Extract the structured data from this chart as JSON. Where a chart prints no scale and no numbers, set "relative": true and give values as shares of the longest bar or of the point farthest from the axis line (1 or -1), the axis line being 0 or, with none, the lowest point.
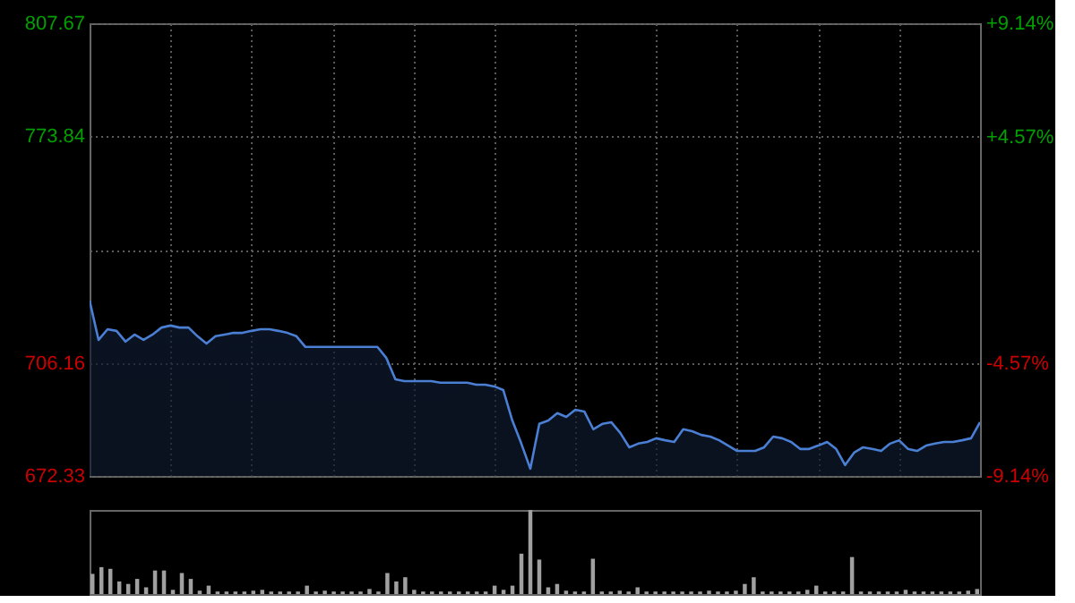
{
  "chart_data": [
    {
      "type": "area",
      "categories": [
        null,
        null,
        null,
        null,
        null,
        null,
        null,
        null,
        null,
        null,
        null,
        null,
        null,
        null,
        null,
        null,
        null,
        null,
        null,
        null,
        null,
        null,
        null,
        null,
        null,
        null,
        null,
        null,
        null,
        null,
        null,
        null,
        null,
        null,
        null,
        null,
        null,
        null,
        null,
        null,
        null,
        null,
        null,
        null,
        null,
        null,
        null,
        null,
        null,
        null,
        null,
        null,
        null,
        null,
        null,
        null,
        null,
        null,
        null,
        null,
        null,
        null,
        null,
        null,
        null,
        null,
        null,
        null,
        null,
        null,
        null,
        null,
        null,
        null,
        null,
        null,
        null,
        null,
        null,
        null,
        null,
        null,
        null,
        null,
        null,
        null,
        null,
        null,
        null,
        null,
        null,
        null,
        null,
        null,
        null,
        null,
        null,
        null,
        null,
        null
      ],
      "values": [
        724.8,
        713.0,
        716.2,
        715.7,
        712.5,
        714.6,
        713.0,
        714.6,
        716.7,
        717.3,
        716.7,
        716.7,
        714.1,
        711.9,
        714.1,
        714.6,
        715.1,
        715.1,
        715.7,
        716.2,
        716.2,
        715.7,
        715.1,
        714.1,
        710.9,
        710.9,
        710.9,
        710.9,
        710.9,
        710.9,
        710.9,
        710.9,
        710.9,
        707.6,
        701.2,
        700.7,
        700.7,
        700.7,
        700.7,
        700.2,
        700.2,
        700.2,
        700.2,
        699.6,
        699.6,
        699.1,
        698.0,
        688.9,
        682.0,
        674.5,
        687.9,
        688.9,
        691.1,
        690.0,
        692.1,
        691.6,
        686.3,
        687.9,
        688.4,
        685.2,
        680.9,
        682.0,
        682.5,
        683.6,
        683.0,
        682.5,
        686.3,
        685.7,
        684.6,
        684.1,
        683.0,
        681.4,
        679.8,
        679.8,
        679.8,
        680.9,
        684.1,
        683.6,
        682.5,
        680.4,
        680.4,
        681.4,
        682.5,
        680.4,
        675.6,
        679.3,
        680.9,
        680.4,
        679.8,
        682.0,
        683.0,
        680.4,
        679.8,
        681.4,
        682.0,
        682.5,
        682.5,
        683.0,
        683.6,
        688.4
      ],
      "color": "#4a7fd4",
      "ylim": [
        672.33,
        807.67
      ],
      "yticks": [
        807.67,
        773.84,
        {
          "value": 740.0,
          "label": null
        },
        706.16,
        672.33
      ],
      "y2lim": [
        -9.14,
        9.14
      ],
      "y2ticks": [
        {
          "value": 9.14,
          "label": "+9.14%"
        },
        {
          "value": 4.57,
          "label": "+4.57%"
        },
        {
          "value": 0,
          "label": null
        },
        {
          "value": -4.57,
          "label": "-4.57%"
        },
        {
          "value": -9.14,
          "label": "-9.14%"
        }
      ],
      "grid": true,
      "tick_labels": "y"
    },
    {
      "type": "bar",
      "relative": true,
      "categories": [
        null,
        null,
        null,
        null,
        null,
        null,
        null,
        null,
        null,
        null,
        null,
        null,
        null,
        null,
        null,
        null,
        null,
        null,
        null,
        null,
        null,
        null,
        null,
        null,
        null,
        null,
        null,
        null,
        null,
        null,
        null,
        null,
        null,
        null,
        null,
        null,
        null,
        null,
        null,
        null,
        null,
        null,
        null,
        null,
        null,
        null,
        null,
        null,
        null,
        null,
        null,
        null,
        null,
        null,
        null,
        null,
        null,
        null,
        null,
        null,
        null,
        null,
        null,
        null,
        null,
        null,
        null,
        null,
        null,
        null,
        null,
        null,
        null,
        null,
        null,
        null,
        null,
        null,
        null,
        null,
        null,
        null,
        null,
        null,
        null,
        null,
        null,
        null,
        null,
        null,
        null,
        null,
        null,
        null,
        null,
        null,
        null,
        null,
        null,
        null
      ],
      "values": [
        0.24,
        0.32,
        0.3,
        0.15,
        0.12,
        0.18,
        0.08,
        0.28,
        0.28,
        0.05,
        0.25,
        0.18,
        0.04,
        0.1,
        0.03,
        0.03,
        0.03,
        0.03,
        0.04,
        0.05,
        0.03,
        0.03,
        0.03,
        0.03,
        0.1,
        0.03,
        0.04,
        0.03,
        0.03,
        0.03,
        0.03,
        0.06,
        0.03,
        0.25,
        0.15,
        0.2,
        0.05,
        0.03,
        0.03,
        0.03,
        0.03,
        0.03,
        0.03,
        0.03,
        0.03,
        0.1,
        0.05,
        0.1,
        0.48,
        1.0,
        0.41,
        0.08,
        0.12,
        0.04,
        0.03,
        0.03,
        0.42,
        0.03,
        0.03,
        0.04,
        0.03,
        0.08,
        0.03,
        0.03,
        0.03,
        0.03,
        0.03,
        0.03,
        0.03,
        0.04,
        0.03,
        0.03,
        0.04,
        0.12,
        0.2,
        0.03,
        0.03,
        0.03,
        0.03,
        0.03,
        0.05,
        0.1,
        0.03,
        0.03,
        0.03,
        0.44,
        0.03,
        0.03,
        0.03,
        0.03,
        0.03,
        0.05,
        0.03,
        0.03,
        0.03,
        0.03,
        0.03,
        0.03,
        0.04,
        0.06
      ],
      "color": "#a0a0a0",
      "tick_labels": false
    }
  ]
}
